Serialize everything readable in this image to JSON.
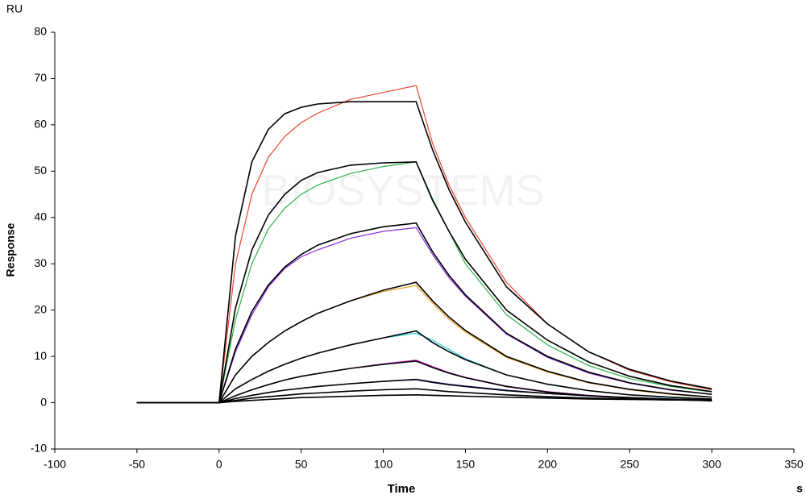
{
  "chart_data": {
    "type": "line",
    "y_unit": "RU",
    "x_unit": "s",
    "ylabel": "Response",
    "xlabel": "Time",
    "watermark": "BIOSYSTEMS",
    "xlim": [
      -100,
      350
    ],
    "xticks": [
      -100,
      -50,
      0,
      50,
      100,
      150,
      200,
      250,
      300,
      350
    ],
    "ylim": [
      -10,
      80
    ],
    "yticks": [
      -10,
      0,
      10,
      20,
      30,
      40,
      50,
      60,
      70,
      80
    ],
    "x": [
      -50,
      0,
      10,
      20,
      30,
      40,
      50,
      60,
      80,
      100,
      120,
      130,
      140,
      150,
      175,
      200,
      225,
      250,
      275,
      300
    ],
    "series": [
      {
        "color": "#e8472e",
        "values": [
          0,
          0,
          30,
          45,
          53,
          57.5,
          60.5,
          62.5,
          65.5,
          67,
          68.5,
          56,
          47,
          40,
          26,
          17,
          11,
          7,
          4.5,
          2.8
        ]
      },
      {
        "color": "#2cb34a",
        "values": [
          0,
          0,
          18,
          30,
          37.5,
          42,
          45,
          47,
          49.5,
          51,
          52,
          44,
          37,
          30,
          19,
          12.5,
          8,
          5.2,
          3.5,
          2.3
        ]
      },
      {
        "color": "#8a2be2",
        "values": [
          0,
          0,
          11,
          19,
          25,
          29,
          31.5,
          33,
          35.5,
          37,
          37.8,
          32,
          27,
          23,
          14.8,
          9.8,
          6.4,
          4.2,
          2.7,
          1.8
        ]
      },
      {
        "color": "#e8a020",
        "values": [
          0,
          0,
          6,
          10,
          13,
          15.5,
          17.5,
          19.3,
          22,
          24,
          25.3,
          21.5,
          18,
          15.3,
          9.8,
          6.6,
          4.3,
          2.8,
          1.8,
          1.2
        ]
      },
      {
        "color": "#18c8d8",
        "values": [
          0,
          0,
          3,
          5,
          6.8,
          8.3,
          9.6,
          10.7,
          12.5,
          14,
          15,
          13.5,
          11.5,
          9.5,
          6,
          4,
          2.6,
          1.7,
          1.1,
          0.8
        ]
      },
      {
        "color": "#e020d0",
        "values": [
          0,
          0,
          1.5,
          2.8,
          3.9,
          4.9,
          5.7,
          6.3,
          7.4,
          8.4,
          9.2,
          7.8,
          6.5,
          5.5,
          3.6,
          2.4,
          1.6,
          1.1,
          0.7,
          0.5
        ]
      },
      {
        "color": "#1a2ad8",
        "values": [
          0,
          0,
          0.9,
          1.6,
          2.2,
          2.7,
          3.1,
          3.5,
          4.1,
          4.6,
          5.1,
          4.5,
          4,
          3.6,
          2.7,
          2,
          1.5,
          1.1,
          0.8,
          0.6
        ]
      },
      {
        "color": "#107030",
        "values": [
          0,
          0,
          0.5,
          1,
          1.3,
          1.6,
          1.9,
          2.1,
          2.5,
          2.8,
          3,
          2.7,
          2.4,
          2.2,
          1.7,
          1.3,
          1,
          0.8,
          0.6,
          0.5
        ]
      },
      {
        "color": "#d01818",
        "values": [
          0,
          0,
          0.3,
          0.5,
          0.7,
          0.9,
          1.1,
          1.2,
          1.4,
          1.6,
          1.7,
          1.6,
          1.5,
          1.4,
          1.2,
          1,
          0.8,
          0.7,
          0.6,
          0.5
        ]
      },
      {
        "color": "#000000",
        "values": [
          0,
          0,
          36,
          52,
          59,
          62.4,
          63.8,
          64.5,
          65,
          65,
          65,
          54.6,
          46,
          39,
          25,
          17,
          11,
          7.2,
          4.7,
          3
        ]
      },
      {
        "color": "#000000",
        "values": [
          0,
          0,
          20.5,
          33,
          40.5,
          45,
          48,
          49.7,
          51.3,
          51.8,
          52,
          43.7,
          37,
          31,
          20,
          13.5,
          8.8,
          5.7,
          3.7,
          2.4
        ]
      },
      {
        "color": "#000000",
        "values": [
          0,
          0,
          11.6,
          19.7,
          25.4,
          29.3,
          32,
          34,
          36.5,
          38,
          38.8,
          32.6,
          27.5,
          23.3,
          15,
          10,
          6.6,
          4.3,
          2.8,
          1.8
        ]
      },
      {
        "color": "#000000",
        "values": [
          0,
          0,
          6,
          10,
          13,
          15.5,
          17.5,
          19.3,
          22,
          24.3,
          26,
          22,
          18.5,
          15.6,
          10,
          6.8,
          4.4,
          2.9,
          1.9,
          1.2
        ]
      },
      {
        "color": "#000000",
        "values": [
          0,
          0,
          3,
          5,
          6.8,
          8.3,
          9.6,
          10.7,
          12.5,
          14,
          15.5,
          13,
          11,
          9.3,
          6,
          4,
          2.6,
          1.7,
          1.2,
          0.8
        ]
      },
      {
        "color": "#000000",
        "values": [
          0,
          0,
          1.5,
          2.8,
          3.9,
          4.9,
          5.7,
          6.3,
          7.4,
          8.3,
          9,
          7.6,
          6.4,
          5.4,
          3.5,
          2.3,
          1.5,
          1,
          0.7,
          0.4
        ]
      },
      {
        "color": "#000000",
        "values": [
          0,
          0,
          0.9,
          1.6,
          2.2,
          2.7,
          3.1,
          3.5,
          4.1,
          4.6,
          5,
          4.4,
          3.9,
          3.5,
          2.6,
          2,
          1.5,
          1.1,
          0.8,
          0.6
        ]
      },
      {
        "color": "#000000",
        "values": [
          0,
          0,
          0.5,
          1,
          1.3,
          1.6,
          1.9,
          2.1,
          2.5,
          2.8,
          3,
          2.7,
          2.4,
          2.2,
          1.7,
          1.3,
          1,
          0.8,
          0.6,
          0.5
        ]
      },
      {
        "color": "#000000",
        "values": [
          0,
          0,
          0.3,
          0.5,
          0.7,
          0.9,
          1.1,
          1.2,
          1.4,
          1.6,
          1.7,
          1.6,
          1.5,
          1.4,
          1.2,
          1,
          0.8,
          0.7,
          0.6,
          0.5
        ]
      }
    ]
  }
}
